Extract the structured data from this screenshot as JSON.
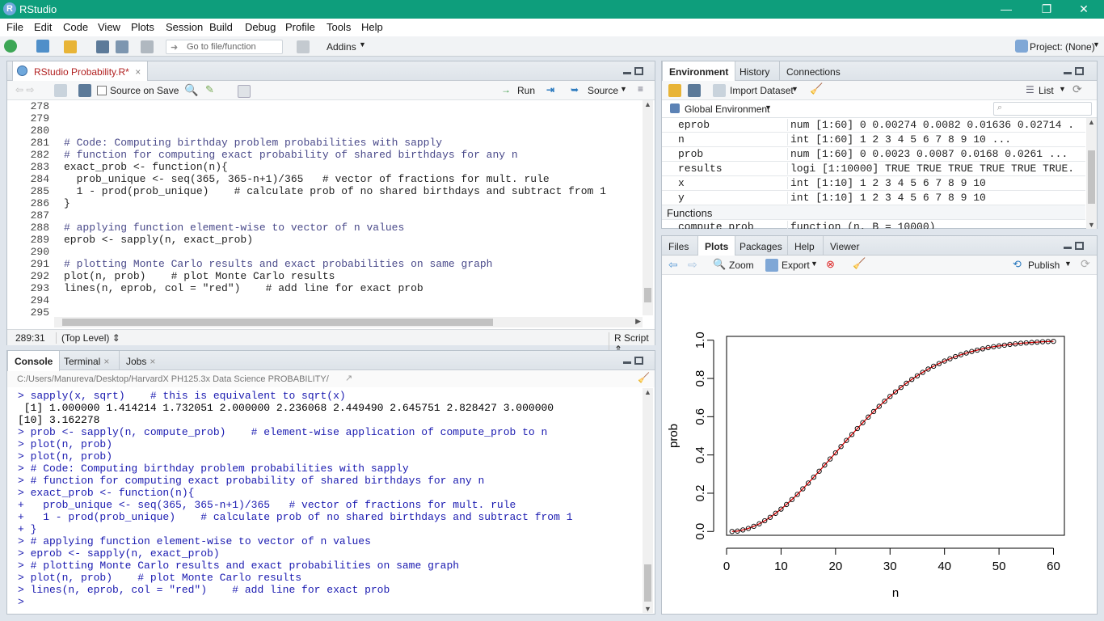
{
  "window": {
    "title": "RStudio",
    "minimize": "—",
    "restore": "❐",
    "close": "✕"
  },
  "menu": [
    "File",
    "Edit",
    "Code",
    "View",
    "Plots",
    "Session",
    "Build",
    "Debug",
    "Profile",
    "Tools",
    "Help"
  ],
  "toolbar": {
    "goto_placeholder": "Go to file/function",
    "addins": "Addins",
    "project": "Project: (None)"
  },
  "editor": {
    "tab_label": "RStudio Probability.R*",
    "source_on_save": "Source on Save",
    "run": "Run",
    "source": "Source",
    "lines": [
      {
        "n": "278",
        "t": ""
      },
      {
        "n": "279",
        "t": ""
      },
      {
        "n": "280",
        "t": ""
      },
      {
        "n": "281",
        "t": "# Code: Computing birthday problem probabilities with sapply"
      },
      {
        "n": "282",
        "t": "# function for computing exact probability of shared birthdays for any n"
      },
      {
        "n": "283",
        "t": "exact_prob <- function(n){"
      },
      {
        "n": "284",
        "t": "  prob_unique <- seq(365, 365-n+1)/365   # vector of fractions for mult. rule"
      },
      {
        "n": "285",
        "t": "  1 - prod(prob_unique)    # calculate prob of no shared birthdays and subtract from 1"
      },
      {
        "n": "286",
        "t": "}"
      },
      {
        "n": "287",
        "t": ""
      },
      {
        "n": "288",
        "t": "# applying function element-wise to vector of n values"
      },
      {
        "n": "289",
        "t": "eprob <- sapply(n, exact_prob)"
      },
      {
        "n": "290",
        "t": ""
      },
      {
        "n": "291",
        "t": "# plotting Monte Carlo results and exact probabilities on same graph"
      },
      {
        "n": "292",
        "t": "plot(n, prob)    # plot Monte Carlo results"
      },
      {
        "n": "293",
        "t": "lines(n, eprob, col = \"red\")    # add line for exact prob"
      },
      {
        "n": "294",
        "t": ""
      },
      {
        "n": "295",
        "t": ""
      }
    ],
    "status_pos": "289:31",
    "status_scope": "(Top Level) ⇕",
    "status_type": "R Script ⇕"
  },
  "console": {
    "tabs": [
      "Console",
      "Terminal",
      "Jobs"
    ],
    "path": "C:/Users/Manureva/Desktop/HarvardX PH125.3x Data Science PROBABILITY/",
    "lines": [
      {
        "t": "> sapply(x, sqrt)    # this is equivalent to sqrt(x)",
        "o": false
      },
      {
        "t": " [1] 1.000000 1.414214 1.732051 2.000000 2.236068 2.449490 2.645751 2.828427 3.000000",
        "o": true
      },
      {
        "t": "[10] 3.162278",
        "o": true
      },
      {
        "t": "> prob <- sapply(n, compute_prob)    # element-wise application of compute_prob to n",
        "o": false
      },
      {
        "t": "> plot(n, prob)",
        "o": false
      },
      {
        "t": "> plot(n, prob)",
        "o": false
      },
      {
        "t": "> # Code: Computing birthday problem probabilities with sapply",
        "o": false
      },
      {
        "t": "> # function for computing exact probability of shared birthdays for any n",
        "o": false
      },
      {
        "t": "> exact_prob <- function(n){",
        "o": false
      },
      {
        "t": "+   prob_unique <- seq(365, 365-n+1)/365   # vector of fractions for mult. rule",
        "o": false
      },
      {
        "t": "+   1 - prod(prob_unique)    # calculate prob of no shared birthdays and subtract from 1",
        "o": false
      },
      {
        "t": "+ }",
        "o": false
      },
      {
        "t": "> # applying function element-wise to vector of n values",
        "o": false
      },
      {
        "t": "> eprob <- sapply(n, exact_prob)",
        "o": false
      },
      {
        "t": "> # plotting Monte Carlo results and exact probabilities on same graph",
        "o": false
      },
      {
        "t": "> plot(n, prob)    # plot Monte Carlo results",
        "o": false
      },
      {
        "t": "> lines(n, eprob, col = \"red\")    # add line for exact prob",
        "o": false
      },
      {
        "t": "> ",
        "o": false
      }
    ]
  },
  "environment": {
    "tabs": [
      "Environment",
      "History",
      "Connections"
    ],
    "import_dataset": "Import Dataset",
    "list_view": "List",
    "scope": "Global Environment",
    "rows": [
      {
        "name": "eprob",
        "value": "num [1:60] 0 0.00274 0.0082 0.01636 0.02714 ..."
      },
      {
        "name": "n",
        "value": "int [1:60] 1 2 3 4 5 6 7 8 9 10 ..."
      },
      {
        "name": "prob",
        "value": "num [1:60] 0 0.0023 0.0087 0.0168 0.0261 ..."
      },
      {
        "name": "results",
        "value": "logi [1:10000] TRUE TRUE TRUE TRUE TRUE TRUE..."
      },
      {
        "name": "x",
        "value": "int [1:10] 1 2 3 4 5 6 7 8 9 10"
      },
      {
        "name": "y",
        "value": "int [1:10] 1 2 3 4 5 6 7 8 9 10"
      }
    ],
    "functions_header": "Functions",
    "func_row": {
      "name": "compute_prob",
      "value": "function (n, B = 10000)"
    }
  },
  "files": {
    "tabs": [
      "Files",
      "Plots",
      "Packages",
      "Help",
      "Viewer"
    ],
    "zoom": "Zoom",
    "export": "Export",
    "publish": "Publish"
  },
  "chart_data": {
    "type": "scatter",
    "xlabel": "n",
    "ylabel": "prob",
    "xlim": [
      0,
      62
    ],
    "ylim": [
      -0.02,
      1.02
    ],
    "xticks": [
      0,
      10,
      20,
      30,
      40,
      50,
      60
    ],
    "yticks": [
      0.0,
      0.2,
      0.4,
      0.6,
      0.8,
      1.0
    ],
    "ytick_labels": [
      "0.0",
      "0.2",
      "0.4",
      "0.6",
      "0.8",
      "1.0"
    ],
    "points_x": [
      1,
      2,
      3,
      4,
      5,
      6,
      7,
      8,
      9,
      10,
      11,
      12,
      13,
      14,
      15,
      16,
      17,
      18,
      19,
      20,
      21,
      22,
      23,
      24,
      25,
      26,
      27,
      28,
      29,
      30,
      31,
      32,
      33,
      34,
      35,
      36,
      37,
      38,
      39,
      40,
      41,
      42,
      43,
      44,
      45,
      46,
      47,
      48,
      49,
      50,
      51,
      52,
      53,
      54,
      55,
      56,
      57,
      58,
      59,
      60
    ],
    "points_y": [
      0,
      0.002,
      0.008,
      0.016,
      0.027,
      0.04,
      0.056,
      0.074,
      0.095,
      0.117,
      0.141,
      0.167,
      0.194,
      0.223,
      0.253,
      0.284,
      0.315,
      0.347,
      0.379,
      0.411,
      0.444,
      0.476,
      0.507,
      0.538,
      0.569,
      0.598,
      0.627,
      0.654,
      0.681,
      0.706,
      0.73,
      0.753,
      0.775,
      0.795,
      0.814,
      0.832,
      0.849,
      0.864,
      0.878,
      0.891,
      0.903,
      0.914,
      0.924,
      0.933,
      0.941,
      0.948,
      0.955,
      0.961,
      0.966,
      0.97,
      0.974,
      0.978,
      0.981,
      0.984,
      0.986,
      0.988,
      0.99,
      0.992,
      0.993,
      0.994
    ],
    "line_color": "#e00000",
    "point_color": "#000000"
  }
}
